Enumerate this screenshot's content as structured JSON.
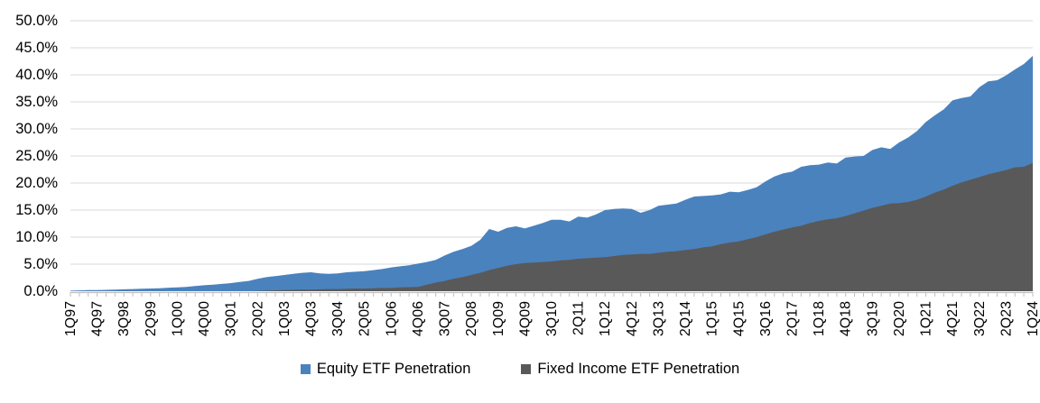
{
  "colors": {
    "background": "#ffffff",
    "equity_blue": "#4a82be",
    "fixed_income_gray": "#595959",
    "gridline": "#d9d9d9",
    "axis": "#bfbfbf",
    "text": "#000000"
  },
  "chart_data": {
    "type": "area",
    "title": "",
    "overlapping": true,
    "grid": "horizontal",
    "legend_position": "bottom",
    "ylim": [
      0,
      50
    ],
    "y_unit": "%",
    "y_ticks": [
      "0.0%",
      "5.0%",
      "10.0%",
      "15.0%",
      "20.0%",
      "25.0%",
      "30.0%",
      "35.0%",
      "40.0%",
      "45.0%",
      "50.0%"
    ],
    "x_tick_label_every": 3,
    "x": [
      "1Q97",
      "2Q97",
      "3Q97",
      "4Q97",
      "1Q98",
      "2Q98",
      "3Q98",
      "4Q98",
      "1Q99",
      "2Q99",
      "3Q99",
      "4Q99",
      "1Q00",
      "2Q00",
      "3Q00",
      "4Q00",
      "1Q01",
      "2Q01",
      "3Q01",
      "4Q01",
      "1Q02",
      "2Q02",
      "3Q02",
      "4Q02",
      "1Q03",
      "2Q03",
      "3Q03",
      "4Q03",
      "1Q04",
      "2Q04",
      "3Q04",
      "4Q04",
      "1Q05",
      "2Q05",
      "3Q05",
      "4Q05",
      "1Q06",
      "2Q06",
      "3Q06",
      "4Q06",
      "1Q07",
      "2Q07",
      "3Q07",
      "4Q07",
      "1Q08",
      "2Q08",
      "3Q08",
      "4Q08",
      "1Q09",
      "2Q09",
      "3Q09",
      "4Q09",
      "1Q10",
      "2Q10",
      "3Q10",
      "4Q10",
      "1Q11",
      "2Q11",
      "3Q11",
      "4Q11",
      "1Q12",
      "2Q12",
      "3Q12",
      "4Q12",
      "1Q13",
      "2Q13",
      "3Q13",
      "4Q13",
      "1Q14",
      "2Q14",
      "3Q14",
      "4Q14",
      "1Q15",
      "2Q15",
      "3Q15",
      "4Q15",
      "1Q16",
      "2Q16",
      "3Q16",
      "4Q16",
      "1Q17",
      "2Q17",
      "3Q17",
      "4Q17",
      "1Q18",
      "2Q18",
      "3Q18",
      "4Q18",
      "1Q19",
      "2Q19",
      "3Q19",
      "4Q19",
      "1Q20",
      "2Q20",
      "3Q20",
      "4Q20",
      "1Q21",
      "2Q21",
      "3Q21",
      "4Q21",
      "1Q22",
      "2Q22",
      "3Q22",
      "4Q22",
      "1Q23",
      "2Q23",
      "3Q23",
      "4Q23",
      "1Q24"
    ],
    "series": [
      {
        "name": "Equity ETF Penetration",
        "color": "#4a82be",
        "values": [
          0.1,
          0.15,
          0.2,
          0.2,
          0.25,
          0.3,
          0.35,
          0.4,
          0.45,
          0.5,
          0.55,
          0.65,
          0.7,
          0.8,
          0.95,
          1.1,
          1.2,
          1.35,
          1.5,
          1.7,
          1.9,
          2.3,
          2.6,
          2.8,
          3.0,
          3.2,
          3.4,
          3.5,
          3.3,
          3.2,
          3.3,
          3.5,
          3.6,
          3.7,
          3.9,
          4.1,
          4.4,
          4.6,
          4.8,
          5.1,
          5.4,
          5.8,
          6.6,
          7.3,
          7.8,
          8.4,
          9.5,
          11.5,
          11.0,
          11.7,
          12.0,
          11.6,
          12.1,
          12.6,
          13.2,
          13.2,
          12.9,
          13.8,
          13.6,
          14.2,
          15.0,
          15.2,
          15.3,
          15.2,
          14.5,
          15.0,
          15.8,
          16.0,
          16.2,
          16.9,
          17.5,
          17.6,
          17.7,
          17.9,
          18.4,
          18.3,
          18.7,
          19.2,
          20.3,
          21.2,
          21.8,
          22.1,
          23.0,
          23.3,
          23.4,
          23.8,
          23.6,
          24.7,
          24.9,
          25.0,
          26.1,
          26.6,
          26.3,
          27.5,
          28.4,
          29.6,
          31.3,
          32.5,
          33.6,
          35.3,
          35.7,
          36.0,
          37.7,
          38.8,
          39.0,
          39.9,
          41.0,
          42.0,
          43.5
        ]
      },
      {
        "name": "Fixed Income ETF Penetration",
        "color": "#595959",
        "values": [
          0,
          0,
          0,
          0,
          0,
          0,
          0,
          0,
          0,
          0,
          0,
          0,
          0,
          0,
          0,
          0,
          0,
          0,
          0,
          0,
          0,
          0.05,
          0.1,
          0.15,
          0.2,
          0.25,
          0.3,
          0.3,
          0.35,
          0.4,
          0.4,
          0.45,
          0.5,
          0.5,
          0.55,
          0.6,
          0.6,
          0.7,
          0.75,
          0.8,
          1.2,
          1.6,
          1.9,
          2.3,
          2.6,
          3.0,
          3.4,
          3.9,
          4.3,
          4.7,
          5.0,
          5.2,
          5.3,
          5.4,
          5.5,
          5.7,
          5.8,
          6.0,
          6.1,
          6.2,
          6.3,
          6.5,
          6.7,
          6.8,
          6.9,
          6.9,
          7.1,
          7.3,
          7.4,
          7.6,
          7.8,
          8.1,
          8.3,
          8.7,
          9.0,
          9.2,
          9.6,
          10.0,
          10.5,
          11.0,
          11.4,
          11.8,
          12.1,
          12.6,
          13.0,
          13.3,
          13.5,
          13.9,
          14.4,
          14.9,
          15.4,
          15.8,
          16.2,
          16.3,
          16.5,
          16.9,
          17.5,
          18.2,
          18.8,
          19.5,
          20.1,
          20.6,
          21.1,
          21.6,
          22.0,
          22.4,
          22.9,
          23.0,
          23.7
        ]
      }
    ]
  }
}
